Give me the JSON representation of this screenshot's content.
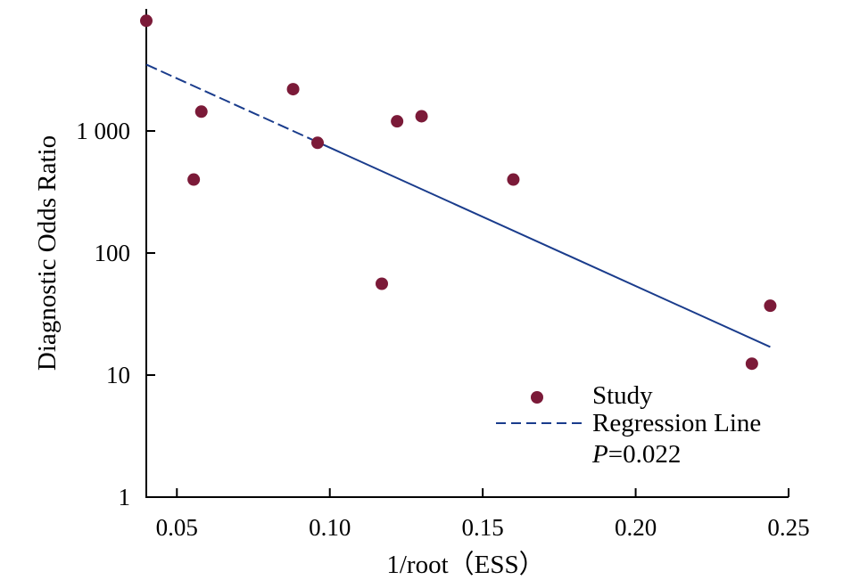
{
  "chart_data": {
    "type": "scatter",
    "xlabel": "1/root（ESS）",
    "ylabel": "Diagnostic Odds Ratio",
    "xlim": [
      0.04,
      0.25
    ],
    "ylim": [
      1,
      10000
    ],
    "yscale": "log",
    "x_ticks": [
      0.05,
      0.1,
      0.15,
      0.2,
      0.25
    ],
    "x_tick_labels": [
      "0.05",
      "0.10",
      "0.15",
      "0.20",
      "0.25"
    ],
    "y_ticks": [
      1,
      10,
      100,
      1000
    ],
    "y_tick_labels": [
      "1",
      "10",
      "100",
      "1 000"
    ],
    "grid": false,
    "legend_position": "bottom-right",
    "series": [
      {
        "name": "Study",
        "kind": "scatter",
        "color": "#7b1a38",
        "points": [
          {
            "x": 0.04,
            "y": 8000
          },
          {
            "x": 0.0555,
            "y": 400
          },
          {
            "x": 0.058,
            "y": 1440
          },
          {
            "x": 0.088,
            "y": 2200
          },
          {
            "x": 0.096,
            "y": 800
          },
          {
            "x": 0.117,
            "y": 56
          },
          {
            "x": 0.122,
            "y": 1200
          },
          {
            "x": 0.13,
            "y": 1320
          },
          {
            "x": 0.16,
            "y": 400
          },
          {
            "x": 0.238,
            "y": 12.4
          },
          {
            "x": 0.244,
            "y": 37
          }
        ]
      },
      {
        "name": "Regression Line",
        "kind": "line",
        "style": "dashed",
        "color": "#1a3c8c",
        "points": [
          {
            "x": 0.04,
            "y": 3500
          },
          {
            "x": 0.244,
            "y": 17
          }
        ]
      }
    ],
    "annotations": {
      "p_label": "P",
      "p_value": "=0.022"
    }
  }
}
